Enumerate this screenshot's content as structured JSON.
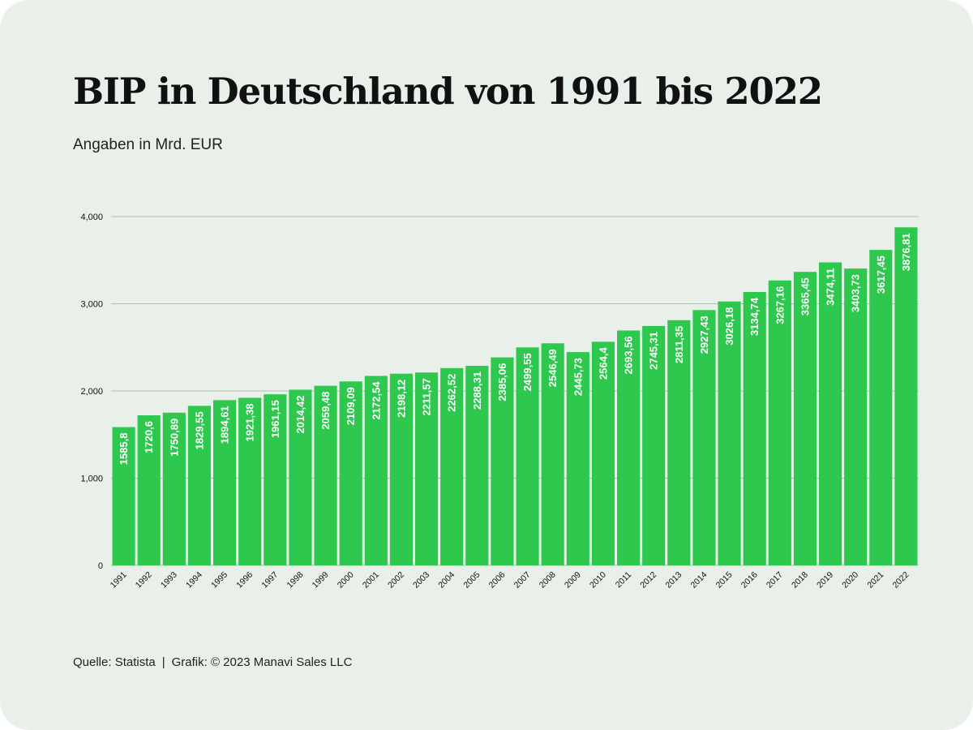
{
  "page": {
    "title": "BIP in Deutschland von 1991 bis 2022",
    "subtitle": "Angaben in Mrd. EUR"
  },
  "footer": {
    "source": "Quelle: Statista",
    "separator": "|",
    "credit": "Grafik: © 2023 Manavi Sales LLC"
  },
  "colors": {
    "background": "#e8f0e9",
    "bar": "#2dc84d",
    "bar_label": "#ffffff",
    "grid": "#b5bcb6",
    "text": "#111111"
  },
  "chart_data": {
    "type": "bar",
    "title": "BIP in Deutschland von 1991 bis 2022",
    "subtitle": "Angaben in Mrd. EUR",
    "xlabel": "",
    "ylabel": "",
    "ylim": [
      0,
      4000
    ],
    "yticks": [
      0,
      1000,
      2000,
      3000,
      4000
    ],
    "ytick_labels": [
      "0",
      "1,000",
      "2,000",
      "3,000",
      "4,000"
    ],
    "grid": true,
    "legend": "none",
    "categories": [
      "1991",
      "1992",
      "1993",
      "1994",
      "1995",
      "1996",
      "1997",
      "1998",
      "1999",
      "2000",
      "2001",
      "2002",
      "2003",
      "2004",
      "2005",
      "2006",
      "2007",
      "2008",
      "2009",
      "2010",
      "2011",
      "2012",
      "2013",
      "2014",
      "2015",
      "2016",
      "2017",
      "2018",
      "2019",
      "2020",
      "2021",
      "2022"
    ],
    "values": [
      1585.8,
      1720.6,
      1750.89,
      1829.55,
      1894.61,
      1921.38,
      1961.15,
      2014.42,
      2059.48,
      2109.09,
      2172.54,
      2198.12,
      2211.57,
      2262.52,
      2288.31,
      2385.06,
      2499.55,
      2546.49,
      2445.73,
      2564.4,
      2693.56,
      2745.31,
      2811.35,
      2927.43,
      3026.18,
      3134.74,
      3267.16,
      3365.45,
      3474.11,
      3403.73,
      3617.45,
      3876.81
    ],
    "data_labels": [
      "1585,8",
      "1720,6",
      "1750,89",
      "1829,55",
      "1894,61",
      "1921,38",
      "1961,15",
      "2014,42",
      "2059,48",
      "2109,09",
      "2172,54",
      "2198,12",
      "2211,57",
      "2262,52",
      "2288,31",
      "2385,06",
      "2499,55",
      "2546,49",
      "2445,73",
      "2564,4",
      "2693,56",
      "2745,31",
      "2811,35",
      "2927,43",
      "3026,18",
      "3134,74",
      "3267,16",
      "3365,45",
      "3474,11",
      "3403,73",
      "3617,45",
      "3876,81"
    ]
  }
}
